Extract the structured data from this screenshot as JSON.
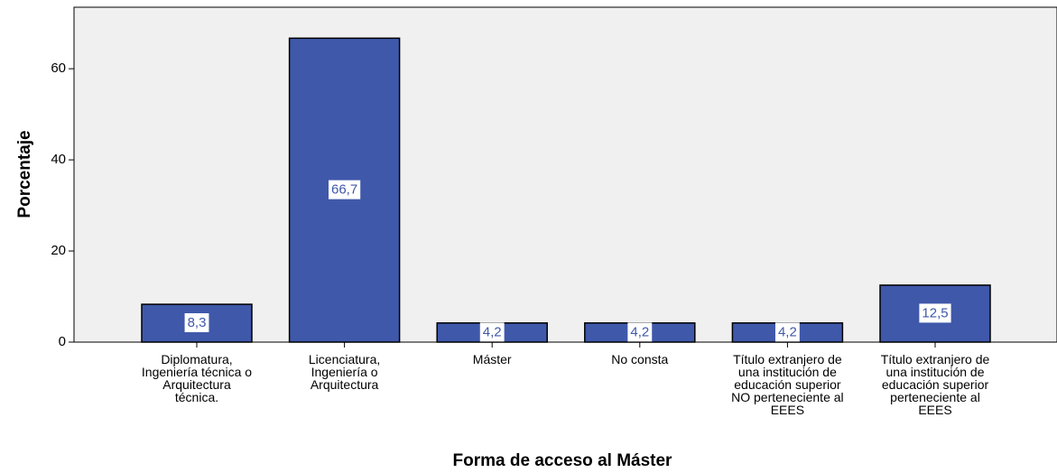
{
  "chart_data": {
    "type": "bar",
    "x_label": "Forma de acceso al Máster",
    "y_label": "Porcentaje",
    "categories": [
      "Diplomatura, Ingeniería técnica o Arquitectura técnica.",
      "Licenciatura, Ingeniería o Arquitectura",
      "Máster",
      "No consta",
      "Título extranjero de una institución de educación superior NO perteneciente al EEES",
      "Título extranjero de una institución de educación superior perteneciente al EEES"
    ],
    "values": [
      8.3,
      66.7,
      4.2,
      4.2,
      4.2,
      12.5
    ],
    "value_labels": [
      "8,3",
      "66,7",
      "4,2",
      "4,2",
      "4,2",
      "12,5"
    ],
    "color": "#3f58aa",
    "ylim": [
      0,
      73.5
    ],
    "yticks": [
      0,
      20,
      40,
      60
    ]
  }
}
